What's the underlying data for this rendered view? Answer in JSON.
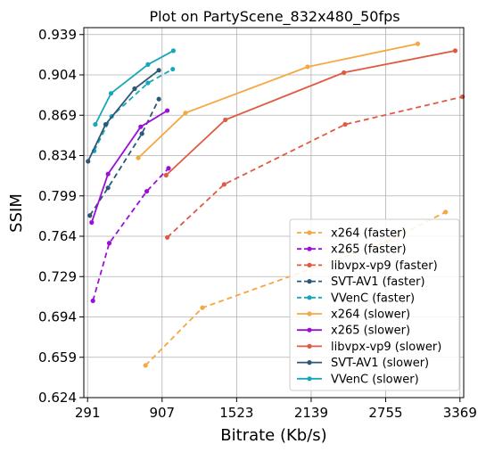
{
  "chart_data": {
    "type": "line",
    "title": "Plot on PartyScene_832x480_50fps",
    "xlabel": "Bitrate (Kb/s)",
    "ylabel": "SSIM",
    "xlim": [
      260,
      3400
    ],
    "ylim": [
      0.624,
      0.945
    ],
    "xticks": [
      291,
      907,
      1523,
      2139,
      2755,
      3369
    ],
    "yticks": [
      0.624,
      0.659,
      0.694,
      0.729,
      0.764,
      0.799,
      0.834,
      0.869,
      0.904,
      0.939
    ],
    "xtick_labels": [
      "291",
      "907",
      "1523",
      "2139",
      "2755",
      "3369"
    ],
    "ytick_labels": [
      "0.624",
      "0.659",
      "0.694",
      "0.729",
      "0.764",
      "0.799",
      "0.834",
      "0.869",
      "0.904",
      "0.939"
    ],
    "grid": true,
    "legend_position": "lower-right",
    "series": [
      {
        "name": "x264 (faster)",
        "color": "#f5a742",
        "dashed": true,
        "points": [
          [
            770,
            0.652
          ],
          [
            1240,
            0.702
          ],
          [
            2760,
            0.759
          ],
          [
            3250,
            0.785
          ]
        ]
      },
      {
        "name": "x265 (faster)",
        "color": "#9b10d6",
        "dashed": true,
        "points": [
          [
            335,
            0.708
          ],
          [
            470,
            0.758
          ],
          [
            780,
            0.803
          ],
          [
            960,
            0.823
          ]
        ]
      },
      {
        "name": "libvpx-vp9 (faster)",
        "color": "#e05a42",
        "dashed": true,
        "points": [
          [
            950,
            0.763
          ],
          [
            1420,
            0.809
          ],
          [
            2420,
            0.861
          ],
          [
            3390,
            0.885
          ]
        ]
      },
      {
        "name": "SVT-AV1 (faster)",
        "color": "#2c5777",
        "dashed": true,
        "points": [
          [
            310,
            0.782
          ],
          [
            460,
            0.806
          ],
          [
            740,
            0.853
          ],
          [
            880,
            0.883
          ]
        ]
      },
      {
        "name": "VVenC (faster)",
        "color": "#16a8b8",
        "dashed": true,
        "points": [
          [
            345,
            0.838
          ],
          [
            490,
            0.868
          ],
          [
            790,
            0.897
          ],
          [
            995,
            0.909
          ]
        ]
      },
      {
        "name": "x264 (slower)",
        "color": "#f5a742",
        "dashed": false,
        "points": [
          [
            710,
            0.832
          ],
          [
            1100,
            0.871
          ],
          [
            2110,
            0.911
          ],
          [
            3020,
            0.931
          ]
        ]
      },
      {
        "name": "x265 (slower)",
        "color": "#9b10d6",
        "dashed": false,
        "points": [
          [
            325,
            0.776
          ],
          [
            460,
            0.818
          ],
          [
            730,
            0.859
          ],
          [
            950,
            0.873
          ]
        ]
      },
      {
        "name": "libvpx-vp9 (slower)",
        "color": "#e05a42",
        "dashed": false,
        "points": [
          [
            940,
            0.817
          ],
          [
            1430,
            0.865
          ],
          [
            2410,
            0.906
          ],
          [
            3330,
            0.925
          ]
        ]
      },
      {
        "name": "SVT-AV1 (slower)",
        "color": "#2c5777",
        "dashed": false,
        "points": [
          [
            295,
            0.829
          ],
          [
            440,
            0.861
          ],
          [
            680,
            0.892
          ],
          [
            880,
            0.908
          ]
        ]
      },
      {
        "name": "VVenC (slower)",
        "color": "#16a8b8",
        "dashed": false,
        "points": [
          [
            355,
            0.861
          ],
          [
            485,
            0.888
          ],
          [
            790,
            0.913
          ],
          [
            1000,
            0.925
          ]
        ]
      }
    ]
  }
}
